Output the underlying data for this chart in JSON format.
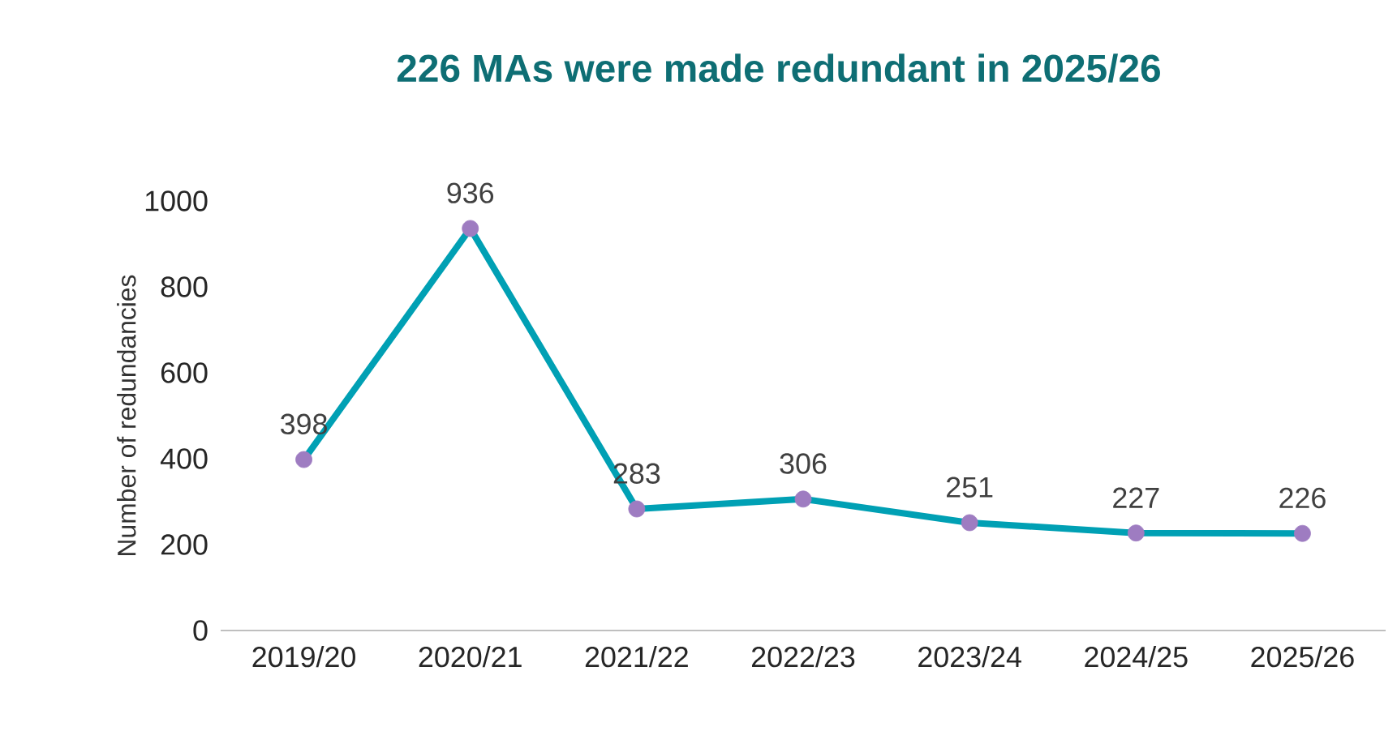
{
  "chart_data": {
    "type": "line",
    "title": "226 MAs were made redundant in 2025/26",
    "ylabel": "Number of redundancies",
    "categories": [
      "2019/20",
      "2020/21",
      "2021/22",
      "2022/23",
      "2023/24",
      "2024/25",
      "2025/26"
    ],
    "series": [
      {
        "color": "#00a0b4",
        "colors": [
          "#9e7cc1",
          "#9e7cc1",
          "#9e7cc1",
          "#9e7cc1",
          "#9e7cc1",
          "#9e7cc1",
          "#9e7cc1"
        ],
        "values": [
          398,
          936,
          283,
          306,
          251,
          227,
          226
        ],
        "value_labels": [
          "398",
          "936",
          "283",
          "306",
          "251",
          "227",
          "226"
        ]
      }
    ],
    "ylim": [
      0,
      1000
    ],
    "yticks": [
      0,
      200,
      400,
      600,
      800,
      1000
    ],
    "grid": false,
    "marker": "circle",
    "line_style": "solid"
  }
}
